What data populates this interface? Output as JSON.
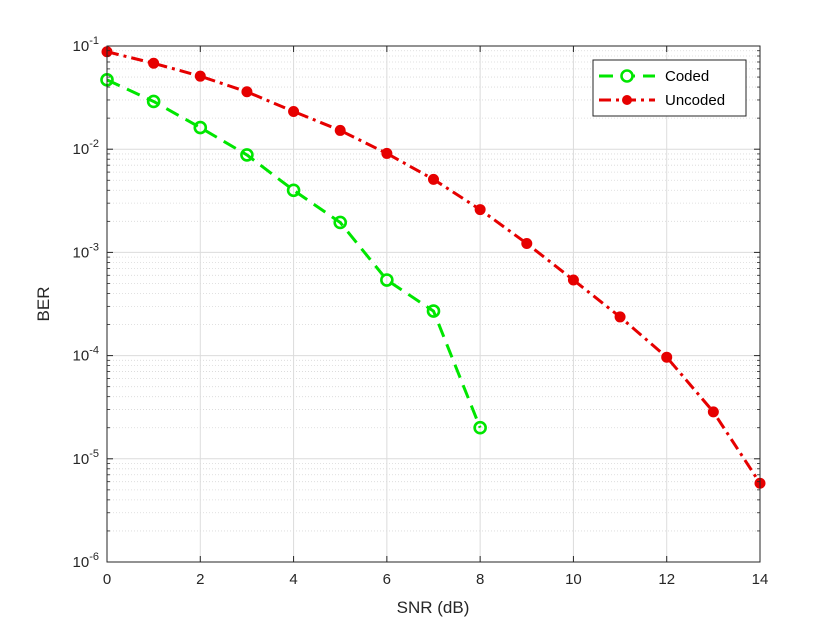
{
  "chart_data": {
    "type": "line",
    "xlabel": "SNR (dB)",
    "ylabel": "BER",
    "xlim": [
      0,
      14
    ],
    "ylim": [
      1e-06,
      0.1
    ],
    "yscale": "log",
    "grid": true,
    "legend_position": "top-right",
    "x_ticks": [
      "0",
      "2",
      "4",
      "6",
      "8",
      "10",
      "12",
      "14"
    ],
    "y_ticks": [
      {
        "base": "10",
        "exp": "-6"
      },
      {
        "base": "10",
        "exp": "-5"
      },
      {
        "base": "10",
        "exp": "-4"
      },
      {
        "base": "10",
        "exp": "-3"
      },
      {
        "base": "10",
        "exp": "-2"
      },
      {
        "base": "10",
        "exp": "-1"
      }
    ],
    "series": [
      {
        "name": "Coded",
        "color": "#00e600",
        "line_style": "dashed",
        "marker": "open-circle",
        "x": [
          0,
          1,
          2,
          3,
          4,
          5,
          6,
          7,
          8
        ],
        "y": [
          0.047,
          0.029,
          0.0162,
          0.0088,
          0.004,
          0.00195,
          0.00054,
          0.00027,
          2e-05
        ]
      },
      {
        "name": "Uncoded",
        "color": "#e60000",
        "line_style": "dash-dot",
        "marker": "filled-circle",
        "x": [
          0,
          1,
          2,
          3,
          4,
          5,
          6,
          7,
          8,
          9,
          10,
          11,
          12,
          13,
          14
        ],
        "y": [
          0.088,
          0.068,
          0.051,
          0.036,
          0.0232,
          0.0152,
          0.0091,
          0.0051,
          0.0026,
          0.00122,
          0.00054,
          0.000237,
          9.65e-05,
          2.85e-05,
          5.8e-06
        ]
      }
    ]
  }
}
